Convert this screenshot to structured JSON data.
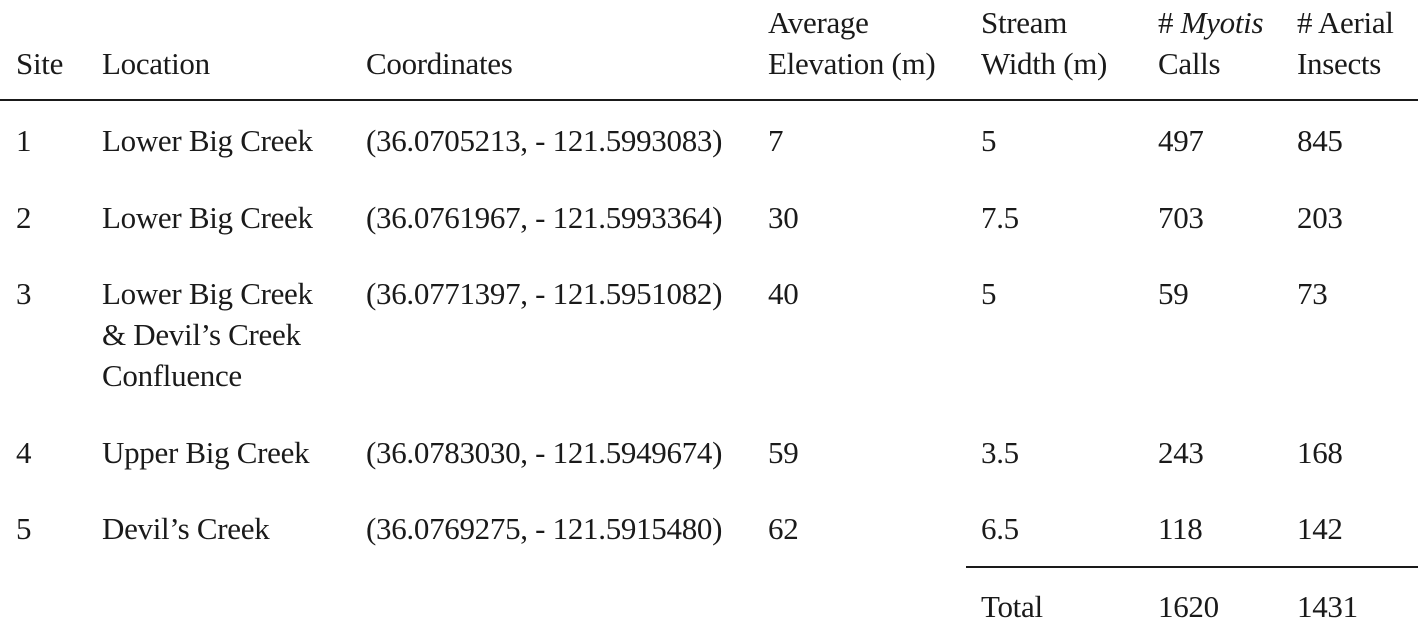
{
  "table": {
    "headers": {
      "site": "Site",
      "location": "Location",
      "coordinates": "Coordinates",
      "elevation_line1": "Average",
      "elevation_line2": "Elevation (m)",
      "width_line1": "Stream",
      "width_line2": "Width (m)",
      "calls_prefix": "# ",
      "calls_italic": "Myotis",
      "calls_line2": "Calls",
      "insects_line1": "# Aerial",
      "insects_line2": "Insects"
    },
    "rows": [
      {
        "site": "1",
        "location_lines": [
          "Lower Big Creek"
        ],
        "coordinates": "(36.0705213, - 121.5993083)",
        "elevation": "7",
        "width": "5",
        "calls": "497",
        "insects": "845"
      },
      {
        "site": "2",
        "location_lines": [
          "Lower Big Creek"
        ],
        "coordinates": "(36.0761967, - 121.5993364)",
        "elevation": "30",
        "width": "7.5",
        "calls": "703",
        "insects": "203"
      },
      {
        "site": "3",
        "location_lines": [
          "Lower Big Creek",
          "& Devil’s Creek",
          "Confluence"
        ],
        "coordinates": "(36.0771397, - 121.5951082)",
        "elevation": "40",
        "width": "5",
        "calls": "59",
        "insects": "73"
      },
      {
        "site": "4",
        "location_lines": [
          "Upper Big Creek"
        ],
        "coordinates": "(36.0783030, - 121.5949674)",
        "elevation": "59",
        "width": "3.5",
        "calls": "243",
        "insects": "168"
      },
      {
        "site": "5",
        "location_lines": [
          "Devil’s Creek"
        ],
        "coordinates": "(36.0769275, - 121.5915480)",
        "elevation": "62",
        "width": "6.5",
        "calls": "118",
        "insects": "142"
      }
    ],
    "total": {
      "label": "Total",
      "calls": "1620",
      "insects": "1431"
    }
  }
}
